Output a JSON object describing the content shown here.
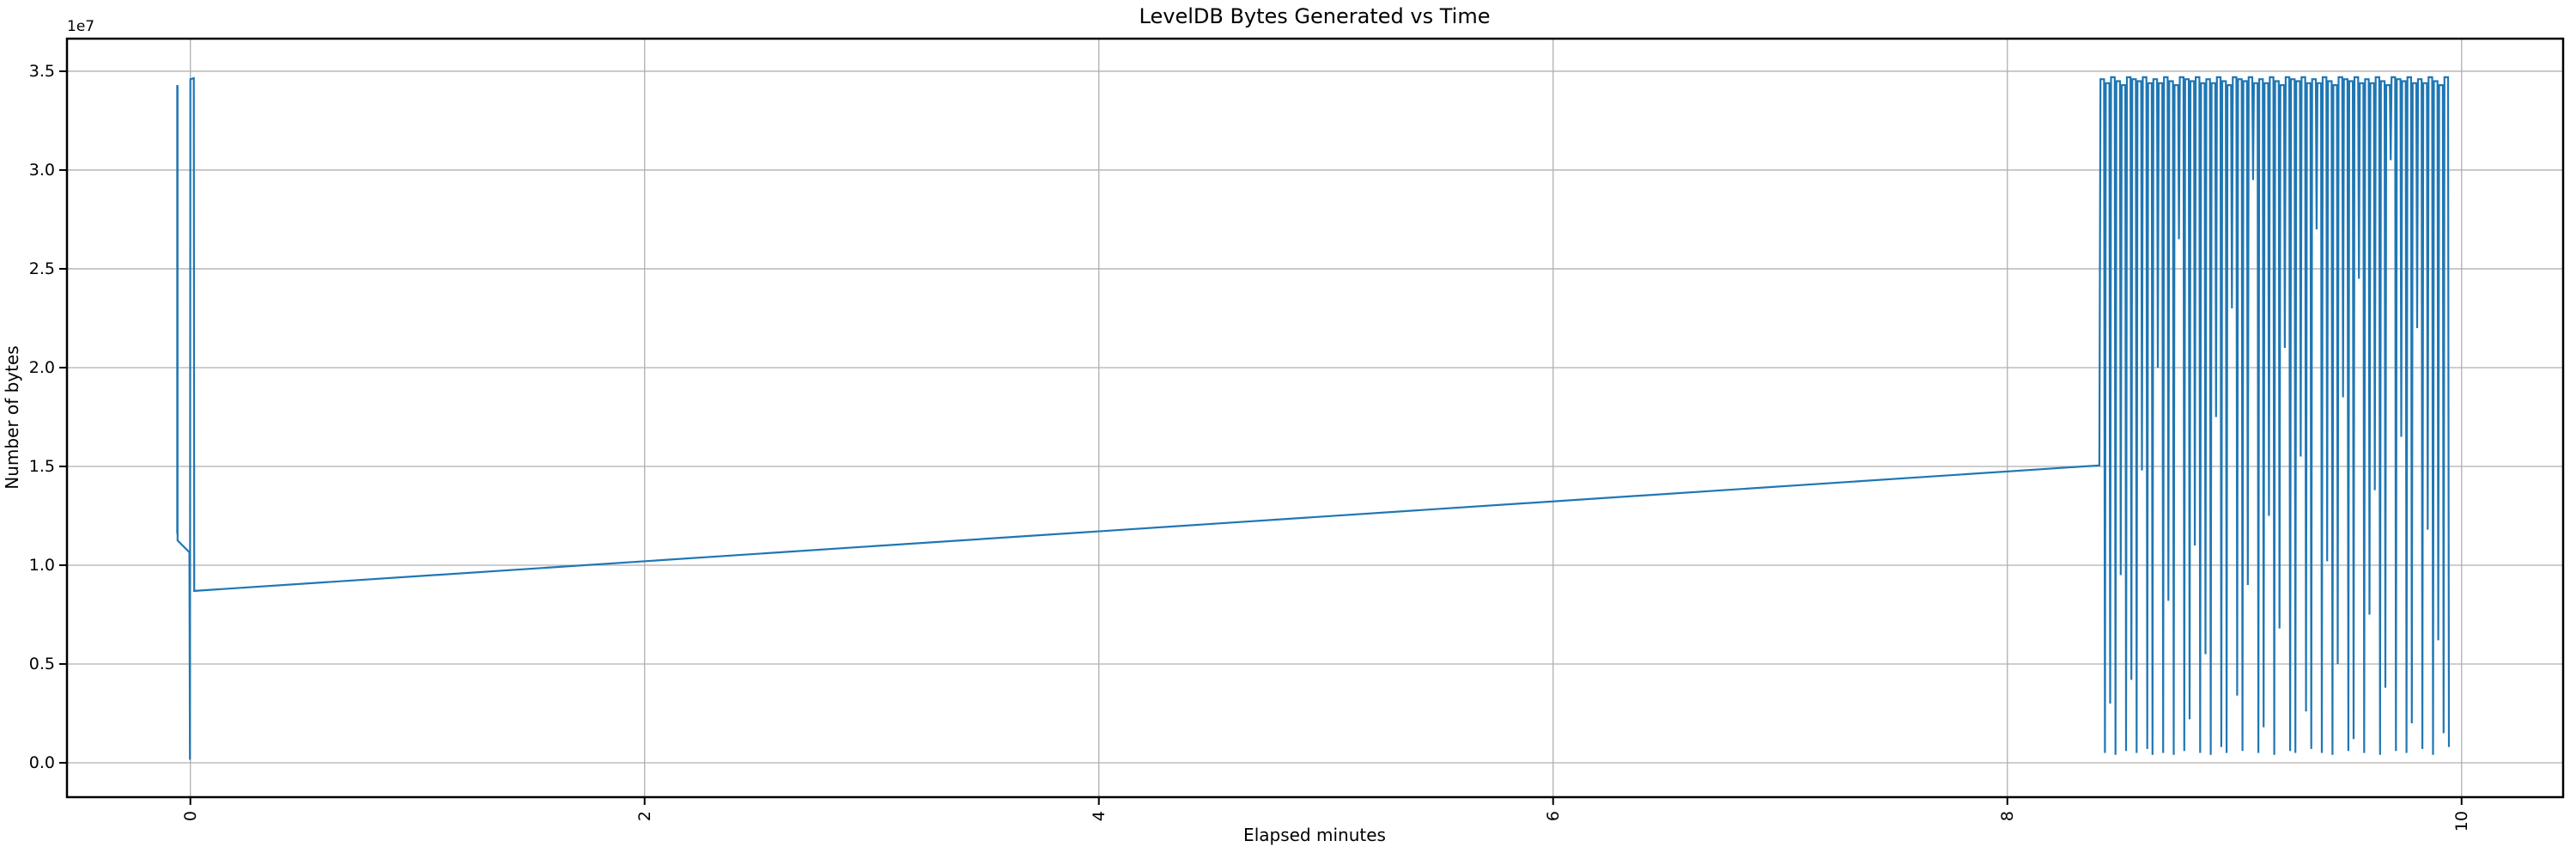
{
  "chart_data": {
    "type": "line",
    "title": "LevelDB Bytes Generated vs Time",
    "xlabel": "Elapsed minutes",
    "ylabel": "Number of bytes",
    "y_offset_text": "1e7",
    "grid": true,
    "legend_position": "none",
    "line_color": "#1f77b4",
    "grid_color": "#b0b0b0",
    "spine_color": "#000000",
    "xlim": [
      -0.5433,
      10.447
    ],
    "ylim": [
      -1740000,
      36650000
    ],
    "xticks": [
      0,
      2,
      4,
      6,
      8,
      10
    ],
    "xtick_labels": [
      "0",
      "2",
      "4",
      "6",
      "8",
      "10"
    ],
    "yticks": [
      0,
      5000000,
      10000000,
      15000000,
      20000000,
      25000000,
      30000000,
      35000000
    ],
    "ytick_labels": [
      "0.0",
      "0.5",
      "1.0",
      "1.5",
      "2.0",
      "2.5",
      "3.0",
      "3.5"
    ],
    "series": [
      {
        "name": "leveldb-bytes-generated",
        "initial_points": [
          [
            -0.058,
            11600000
          ],
          [
            -0.058,
            34250000
          ],
          [
            -0.0565,
            34250000
          ],
          [
            -0.0565,
            11250000
          ],
          [
            -0.004,
            10650000
          ],
          [
            -0.002,
            150000
          ],
          [
            0.0,
            34600000
          ],
          [
            0.015,
            34650000
          ],
          [
            0.017,
            8700000
          ]
        ],
        "ramp_end_point": [
          8.405,
          15050000
        ],
        "burst": {
          "x_start": 8.41,
          "x_end": 9.944,
          "cycle_minutes": 0.0233,
          "top_width_minutes": 0.016,
          "drop_offset_minutes": 0.0195,
          "cycle_highs": [
            34600000,
            34400000,
            34700000,
            34500000,
            34300000,
            34700000,
            34600000,
            34500000,
            34700000,
            34400000,
            34600000,
            34400000,
            34700000,
            34500000,
            34300000,
            34700000,
            34600000,
            34500000,
            34700000,
            34400000,
            34600000,
            34400000,
            34700000,
            34500000,
            34300000,
            34700000,
            34600000,
            34500000,
            34700000,
            34400000,
            34600000,
            34400000,
            34700000,
            34500000,
            34300000,
            34700000,
            34600000,
            34500000,
            34700000,
            34400000,
            34600000,
            34400000,
            34700000,
            34500000,
            34300000,
            34700000,
            34600000,
            34500000,
            34700000,
            34400000,
            34600000,
            34400000,
            34700000,
            34500000,
            34300000,
            34700000,
            34600000,
            34500000,
            34700000,
            34400000,
            34600000,
            34400000,
            34700000,
            34500000,
            34300000,
            34700000
          ],
          "cycle_lows": [
            500000,
            3000000,
            400000,
            9500000,
            600000,
            4200000,
            500000,
            14800000,
            700000,
            400000,
            20000000,
            500000,
            8200000,
            400000,
            26500000,
            600000,
            2200000,
            11000000,
            500000,
            5500000,
            400000,
            17500000,
            800000,
            500000,
            23000000,
            3400000,
            600000,
            9000000,
            29500000,
            500000,
            1800000,
            12500000,
            400000,
            6800000,
            21000000,
            600000,
            500000,
            15500000,
            2600000,
            700000,
            27000000,
            500000,
            10200000,
            400000,
            5000000,
            18500000,
            600000,
            1200000,
            24500000,
            500000,
            7500000,
            13800000,
            400000,
            3800000,
            30500000,
            600000,
            16500000,
            500000,
            2000000,
            22000000,
            700000,
            11800000,
            400000,
            6200000,
            1500000,
            800000
          ]
        }
      }
    ]
  }
}
